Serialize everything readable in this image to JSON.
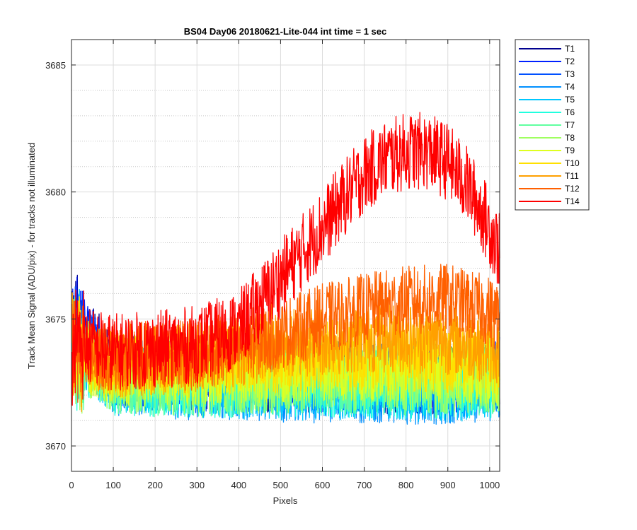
{
  "chart_data": {
    "type": "line",
    "title": "BS04 Day06 20180621-Lite-044 int time = 1 sec",
    "xlabel": "Pixels",
    "ylabel": "Track Mean Signal (ADU/pix) - for tracks not illuminated",
    "xlim": [
      0,
      1024
    ],
    "ylim": [
      3669,
      3686
    ],
    "xticks": [
      0,
      100,
      200,
      300,
      400,
      500,
      600,
      700,
      800,
      900,
      1000
    ],
    "yticks": [
      3670,
      3675,
      3680,
      3685
    ],
    "grid": {
      "major": true,
      "minor_y": true
    },
    "legend_position": "outside-top-right",
    "samples_per_series": 1024,
    "x_start": 1,
    "x_step": 1,
    "series": [
      {
        "name": "T1",
        "color": "#00008f",
        "values_note": "noisy",
        "profile": {
          "x": [
            1,
            25,
            100,
            300,
            500,
            700,
            900,
            1024
          ],
          "y": [
            3674.5,
            3674.8,
            3673.0,
            3672.8,
            3672.7,
            3672.7,
            3672.6,
            3672.8
          ]
        },
        "noise_amplitude": 1.0
      },
      {
        "name": "T2",
        "color": "#0020ff",
        "profile": {
          "x": [
            1,
            25,
            100,
            300,
            500,
            700,
            900,
            1024
          ],
          "y": [
            3674.3,
            3674.6,
            3673.0,
            3672.8,
            3672.8,
            3672.8,
            3672.7,
            3672.9
          ]
        },
        "noise_amplitude": 1.0
      },
      {
        "name": "T3",
        "color": "#0050ff",
        "profile": {
          "x": [
            1,
            25,
            100,
            300,
            500,
            700,
            900,
            1024
          ],
          "y": [
            3674.2,
            3674.3,
            3672.9,
            3672.7,
            3672.7,
            3672.7,
            3672.6,
            3672.8
          ]
        },
        "noise_amplitude": 1.0
      },
      {
        "name": "T4",
        "color": "#0090ff",
        "profile": {
          "x": [
            1,
            25,
            100,
            300,
            500,
            700,
            900,
            1024
          ],
          "y": [
            3673.9,
            3673.8,
            3672.6,
            3672.4,
            3672.3,
            3672.3,
            3672.2,
            3672.4
          ]
        },
        "noise_amplitude": 1.0
      },
      {
        "name": "T5",
        "color": "#00c8ff",
        "profile": {
          "x": [
            1,
            25,
            100,
            300,
            500,
            700,
            900,
            1024
          ],
          "y": [
            3673.8,
            3673.7,
            3672.7,
            3672.5,
            3672.4,
            3672.4,
            3672.3,
            3672.5
          ]
        },
        "noise_amplitude": 1.0
      },
      {
        "name": "T6",
        "color": "#20ffdf",
        "profile": {
          "x": [
            1,
            25,
            100,
            300,
            500,
            700,
            900,
            1024
          ],
          "y": [
            3673.7,
            3673.5,
            3672.6,
            3672.5,
            3672.5,
            3672.5,
            3672.4,
            3672.5
          ]
        },
        "noise_amplitude": 1.0
      },
      {
        "name": "T7",
        "color": "#60ffa0",
        "profile": {
          "x": [
            1,
            25,
            100,
            300,
            500,
            700,
            900,
            1024
          ],
          "y": [
            3673.6,
            3673.4,
            3672.6,
            3672.5,
            3672.6,
            3672.6,
            3672.5,
            3672.6
          ]
        },
        "noise_amplitude": 1.0
      },
      {
        "name": "T8",
        "color": "#9fff60",
        "profile": {
          "x": [
            1,
            25,
            100,
            300,
            500,
            700,
            900,
            1024
          ],
          "y": [
            3673.5,
            3673.3,
            3672.7,
            3672.6,
            3672.7,
            3672.8,
            3672.7,
            3672.7
          ]
        },
        "noise_amplitude": 1.0
      },
      {
        "name": "T9",
        "color": "#dfff20",
        "profile": {
          "x": [
            1,
            25,
            100,
            300,
            500,
            700,
            900,
            1024
          ],
          "y": [
            3673.6,
            3673.5,
            3673.0,
            3673.0,
            3673.1,
            3673.2,
            3673.1,
            3673.0
          ]
        },
        "noise_amplitude": 1.0
      },
      {
        "name": "T10",
        "color": "#ffe000",
        "profile": {
          "x": [
            1,
            25,
            100,
            300,
            500,
            700,
            900,
            1024
          ],
          "y": [
            3673.7,
            3673.6,
            3673.2,
            3673.3,
            3673.5,
            3673.6,
            3673.5,
            3673.3
          ]
        },
        "noise_amplitude": 1.0
      },
      {
        "name": "T11",
        "color": "#ffa000",
        "profile": {
          "x": [
            1,
            25,
            100,
            300,
            500,
            700,
            900,
            1024
          ],
          "y": [
            3673.8,
            3673.7,
            3673.3,
            3673.5,
            3674.0,
            3674.3,
            3674.2,
            3673.8
          ]
        },
        "noise_amplitude": 1.0
      },
      {
        "name": "T12",
        "color": "#ff6000",
        "profile": {
          "x": [
            1,
            25,
            100,
            300,
            400,
            500,
            600,
            700,
            800,
            900,
            1000,
            1024
          ],
          "y": [
            3673.9,
            3673.8,
            3673.5,
            3673.6,
            3673.9,
            3674.4,
            3675.0,
            3675.4,
            3675.7,
            3675.8,
            3675.3,
            3675.0
          ]
        },
        "noise_amplitude": 1.0
      },
      {
        "name": "T14",
        "color": "#ff0000",
        "profile": {
          "x": [
            1,
            25,
            100,
            200,
            300,
            400,
            450,
            500,
            550,
            600,
            650,
            700,
            750,
            800,
            850,
            900,
            950,
            1000,
            1024
          ],
          "y": [
            3674.2,
            3674.0,
            3673.7,
            3673.8,
            3674.0,
            3674.6,
            3675.6,
            3676.6,
            3677.6,
            3678.6,
            3679.7,
            3680.7,
            3681.3,
            3681.6,
            3681.6,
            3681.2,
            3680.2,
            3678.6,
            3677.6
          ]
        },
        "noise_amplitude": 1.1
      }
    ]
  }
}
